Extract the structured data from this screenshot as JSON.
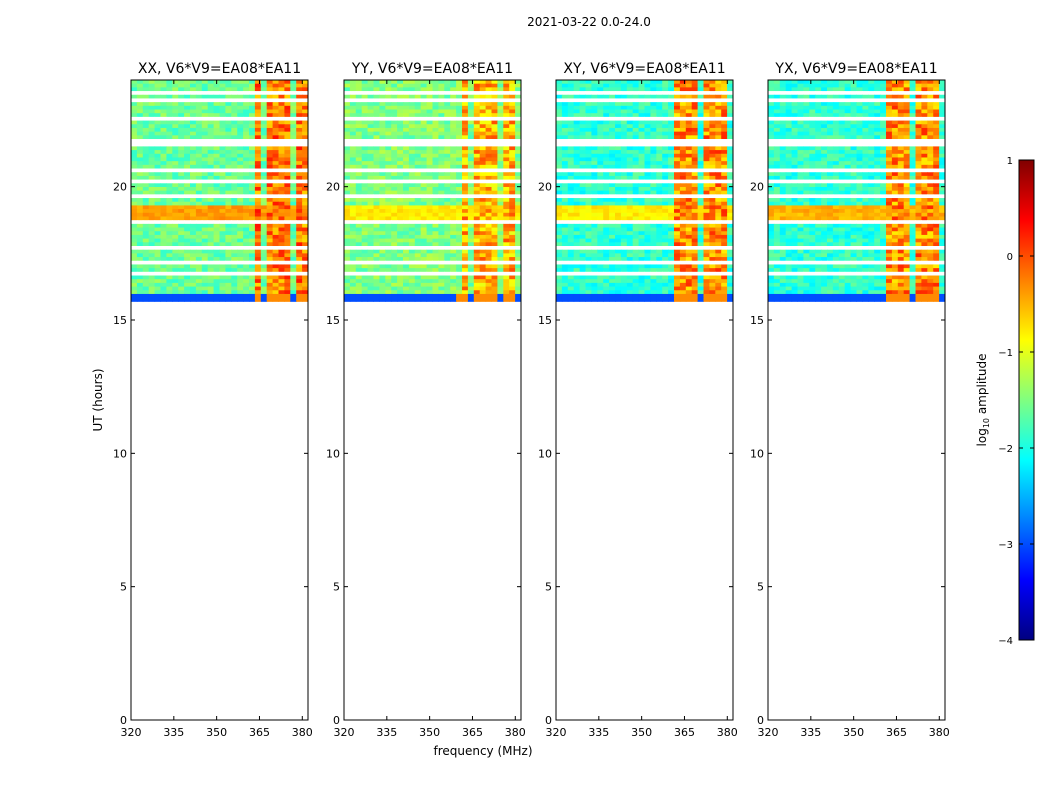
{
  "figure": {
    "suptitle": "2021-03-22 0.0-24.0",
    "xlabel": "frequency (MHz)",
    "ylabel": "UT (hours)"
  },
  "colors": {
    "jet": [
      "#000080",
      "#0000ff",
      "#0080ff",
      "#00ffff",
      "#80ff80",
      "#ffff00",
      "#ff8000",
      "#ff0000",
      "#800000"
    ],
    "axes": "#000000",
    "background": "#ffffff"
  },
  "chart_data": {
    "type": "heatmap",
    "xlim": [
      320,
      382
    ],
    "ylim": [
      0,
      24
    ],
    "xticks": [
      320,
      335,
      350,
      365,
      380
    ],
    "yticks": [
      0,
      5,
      10,
      15,
      20
    ],
    "data_ut_range": [
      15.7,
      24
    ],
    "colorbar": {
      "label": "log",
      "label_sub": "10",
      "label_rest": " amplitude",
      "range": [
        -4,
        1
      ],
      "ticks": [
        -4,
        -3,
        -2,
        -1,
        0,
        1
      ],
      "tick_labels": [
        "−4",
        "−3",
        "−2",
        "−1",
        "0",
        "1"
      ]
    },
    "panels": [
      {
        "title": "XX, V6*V9=EA08*EA11",
        "base_log_amp": -1.6,
        "band_ut": [
          18.8,
          19.3
        ],
        "band_log_amp": -0.4,
        "hot_channels_mhz": [
          364.5,
          369.5,
          374.5,
          379
        ],
        "hot_log_amp": 0.3
      },
      {
        "title": "YY, V6*V9=EA08*EA11",
        "base_log_amp": -1.5,
        "band_ut": [
          18.8,
          19.3
        ],
        "band_log_amp": -0.8,
        "hot_channels_mhz": [
          362,
          367.5,
          372.5,
          377.5
        ],
        "hot_log_amp": 0.0
      },
      {
        "title": "XY, V6*V9=EA08*EA11",
        "base_log_amp": -1.9,
        "band_ut": [
          18.8,
          19.3
        ],
        "band_log_amp": -0.8,
        "hot_channels_mhz": [
          363,
          368,
          373,
          378
        ],
        "hot_log_amp": 0.2
      },
      {
        "title": "YX, V6*V9=EA08*EA11",
        "base_log_amp": -1.9,
        "band_ut": [
          18.8,
          19.3
        ],
        "band_log_amp": -0.5,
        "hot_channels_mhz": [
          363,
          368,
          373,
          378
        ],
        "hot_log_amp": 0.2
      }
    ]
  }
}
